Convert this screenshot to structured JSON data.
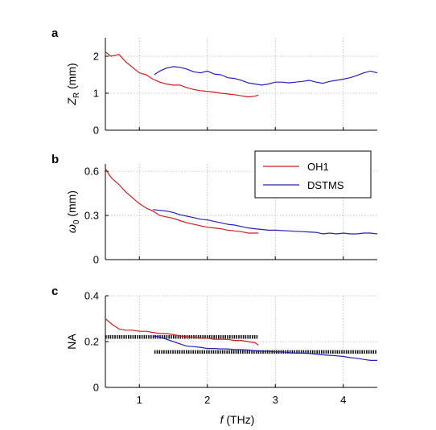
{
  "chart_data": {
    "type": "line",
    "xlabel": "f (THz)",
    "xlim": [
      0.5,
      4.5
    ],
    "xticks": [
      1,
      2,
      3,
      4
    ],
    "legend": {
      "placement": "inside panel b, top-right",
      "entries": [
        {
          "name": "OH1",
          "color": "#cc1f1f"
        },
        {
          "name": "DSTMS",
          "color": "#2222b8"
        }
      ]
    },
    "panels": [
      {
        "letter": "a",
        "ylabel_main": "Z",
        "ylabel_sub": "R",
        "ylabel_unit": " (mm)",
        "ylim": [
          0,
          2.5
        ],
        "yticks": [
          0,
          1,
          2
        ],
        "series": [
          {
            "name": "OH1",
            "color": "#cc1f1f",
            "x": [
              0.5,
              0.58,
              0.7,
              0.8,
              0.9,
              1.0,
              1.1,
              1.2,
              1.3,
              1.4,
              1.5,
              1.6,
              1.7,
              1.8,
              1.9,
              2.0,
              2.1,
              2.2,
              2.3,
              2.4,
              2.5,
              2.6,
              2.7,
              2.75
            ],
            "y": [
              2.12,
              2.0,
              2.05,
              1.85,
              1.7,
              1.55,
              1.5,
              1.38,
              1.3,
              1.25,
              1.22,
              1.22,
              1.15,
              1.1,
              1.07,
              1.05,
              1.03,
              1.0,
              0.98,
              0.96,
              0.93,
              0.9,
              0.92,
              0.95
            ]
          },
          {
            "name": "DSTMS",
            "color": "#2222b8",
            "x": [
              1.22,
              1.3,
              1.4,
              1.5,
              1.6,
              1.7,
              1.8,
              1.9,
              2.0,
              2.1,
              2.2,
              2.3,
              2.4,
              2.5,
              2.6,
              2.7,
              2.8,
              2.9,
              3.0,
              3.1,
              3.2,
              3.3,
              3.4,
              3.5,
              3.6,
              3.7,
              3.8,
              3.9,
              4.0,
              4.1,
              4.2,
              4.3,
              4.4,
              4.5
            ],
            "y": [
              1.5,
              1.6,
              1.68,
              1.72,
              1.7,
              1.65,
              1.58,
              1.55,
              1.6,
              1.52,
              1.5,
              1.42,
              1.4,
              1.35,
              1.28,
              1.25,
              1.22,
              1.25,
              1.3,
              1.3,
              1.28,
              1.3,
              1.32,
              1.35,
              1.3,
              1.27,
              1.32,
              1.35,
              1.38,
              1.42,
              1.48,
              1.55,
              1.6,
              1.55
            ]
          }
        ]
      },
      {
        "letter": "b",
        "ylabel_main": "ω",
        "ylabel_sub": "0",
        "ylabel_unit": " (mm)",
        "ylim": [
          0,
          0.65
        ],
        "yticks": [
          0,
          0.3,
          0.6
        ],
        "series": [
          {
            "name": "OH1",
            "color": "#cc1f1f",
            "x": [
              0.5,
              0.55,
              0.6,
              0.7,
              0.8,
              0.9,
              1.0,
              1.1,
              1.2,
              1.3,
              1.4,
              1.5,
              1.6,
              1.7,
              1.8,
              1.9,
              2.0,
              2.1,
              2.2,
              2.3,
              2.4,
              2.5,
              2.6,
              2.75
            ],
            "y": [
              0.62,
              0.58,
              0.55,
              0.51,
              0.46,
              0.42,
              0.38,
              0.35,
              0.33,
              0.3,
              0.29,
              0.28,
              0.265,
              0.25,
              0.24,
              0.23,
              0.22,
              0.215,
              0.21,
              0.2,
              0.195,
              0.19,
              0.18,
              0.18
            ]
          },
          {
            "name": "DSTMS",
            "color": "#2222b8",
            "x": [
              1.2,
              1.3,
              1.4,
              1.5,
              1.6,
              1.7,
              1.8,
              1.9,
              2.0,
              2.1,
              2.2,
              2.3,
              2.4,
              2.5,
              2.6,
              2.7,
              2.8,
              2.9,
              3.0,
              3.2,
              3.4,
              3.6,
              3.7,
              3.8,
              3.9,
              4.0,
              4.1,
              4.2,
              4.3,
              4.4,
              4.5
            ],
            "y": [
              0.34,
              0.335,
              0.33,
              0.32,
              0.305,
              0.295,
              0.285,
              0.275,
              0.27,
              0.26,
              0.25,
              0.24,
              0.235,
              0.225,
              0.215,
              0.21,
              0.205,
              0.2,
              0.2,
              0.195,
              0.19,
              0.185,
              0.175,
              0.18,
              0.175,
              0.18,
              0.175,
              0.175,
              0.18,
              0.18,
              0.175
            ]
          }
        ]
      },
      {
        "letter": "c",
        "ylabel_main": "NA",
        "ylabel_sub": "",
        "ylabel_unit": "",
        "ylim": [
          0,
          0.4
        ],
        "yticks": [
          0,
          0.2,
          0.4
        ],
        "series": [
          {
            "name": "OH1",
            "color": "#cc1f1f",
            "x": [
              0.5,
              0.6,
              0.7,
              0.8,
              0.9,
              1.0,
              1.1,
              1.2,
              1.3,
              1.4,
              1.5,
              1.6,
              1.7,
              1.8,
              1.9,
              2.0,
              2.1,
              2.2,
              2.3,
              2.4,
              2.5,
              2.6,
              2.7,
              2.75
            ],
            "y": [
              0.3,
              0.275,
              0.255,
              0.25,
              0.25,
              0.245,
              0.245,
              0.24,
              0.235,
              0.235,
              0.23,
              0.225,
              0.22,
              0.22,
              0.215,
              0.215,
              0.21,
              0.21,
              0.21,
              0.205,
              0.205,
              0.2,
              0.195,
              0.185
            ]
          },
          {
            "name": "DSTMS",
            "color": "#2222b8",
            "x": [
              1.2,
              1.3,
              1.4,
              1.5,
              1.6,
              1.7,
              1.8,
              1.9,
              2.0,
              2.1,
              2.2,
              2.3,
              2.4,
              2.5,
              2.6,
              2.7,
              2.8,
              2.9,
              3.0,
              3.1,
              3.2,
              3.3,
              3.4,
              3.5,
              3.6,
              3.7,
              3.8,
              3.9,
              4.0,
              4.1,
              4.2,
              4.3,
              4.4,
              4.5
            ],
            "y": [
              0.225,
              0.22,
              0.21,
              0.2,
              0.19,
              0.18,
              0.178,
              0.175,
              0.17,
              0.17,
              0.168,
              0.168,
              0.165,
              0.165,
              0.163,
              0.16,
              0.158,
              0.158,
              0.155,
              0.155,
              0.152,
              0.15,
              0.15,
              0.148,
              0.145,
              0.142,
              0.14,
              0.138,
              0.135,
              0.13,
              0.127,
              0.122,
              0.118,
              0.118
            ]
          }
        ],
        "reference_levels": [
          {
            "x": [
              0.5,
              2.75
            ],
            "y": 0.22
          },
          {
            "x": [
              1.22,
              4.5
            ],
            "y": 0.155
          }
        ]
      }
    ]
  }
}
